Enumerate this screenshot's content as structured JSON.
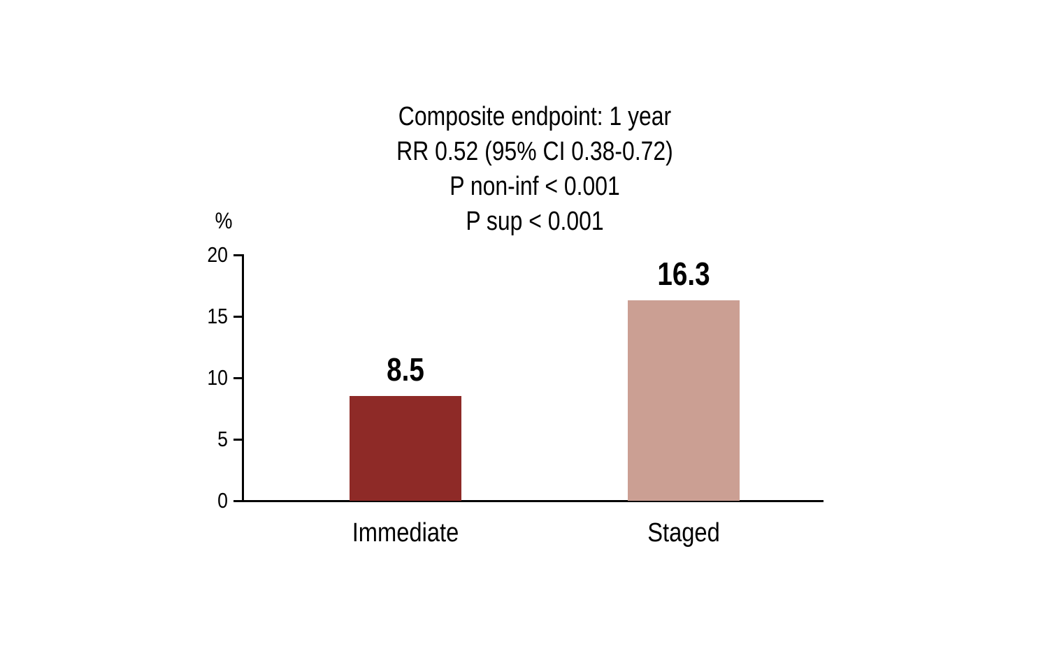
{
  "chart_data": {
    "type": "bar",
    "title": "Composite endpoint: 1 year",
    "subtitle_lines": [
      "RR 0.52 (95% CI 0.38-0.72)",
      "P non-inf < 0.001",
      "P sup < 0.001"
    ],
    "categories": [
      "Immediate",
      "Staged"
    ],
    "values": [
      8.5,
      16.3
    ],
    "value_labels": [
      "8.5",
      "16.3"
    ],
    "bar_colors": [
      "#8e2a27",
      "#cb9f93"
    ],
    "xlabel": "",
    "ylabel": "%",
    "yticks": [
      0,
      5,
      10,
      15,
      20
    ],
    "ylim": [
      0,
      20
    ],
    "grid": false,
    "legend": false
  },
  "colors": {
    "axis": "#000000",
    "text": "#000000",
    "background": "#ffffff",
    "bar_immediate": "#8e2a27",
    "bar_staged": "#cb9f93"
  }
}
